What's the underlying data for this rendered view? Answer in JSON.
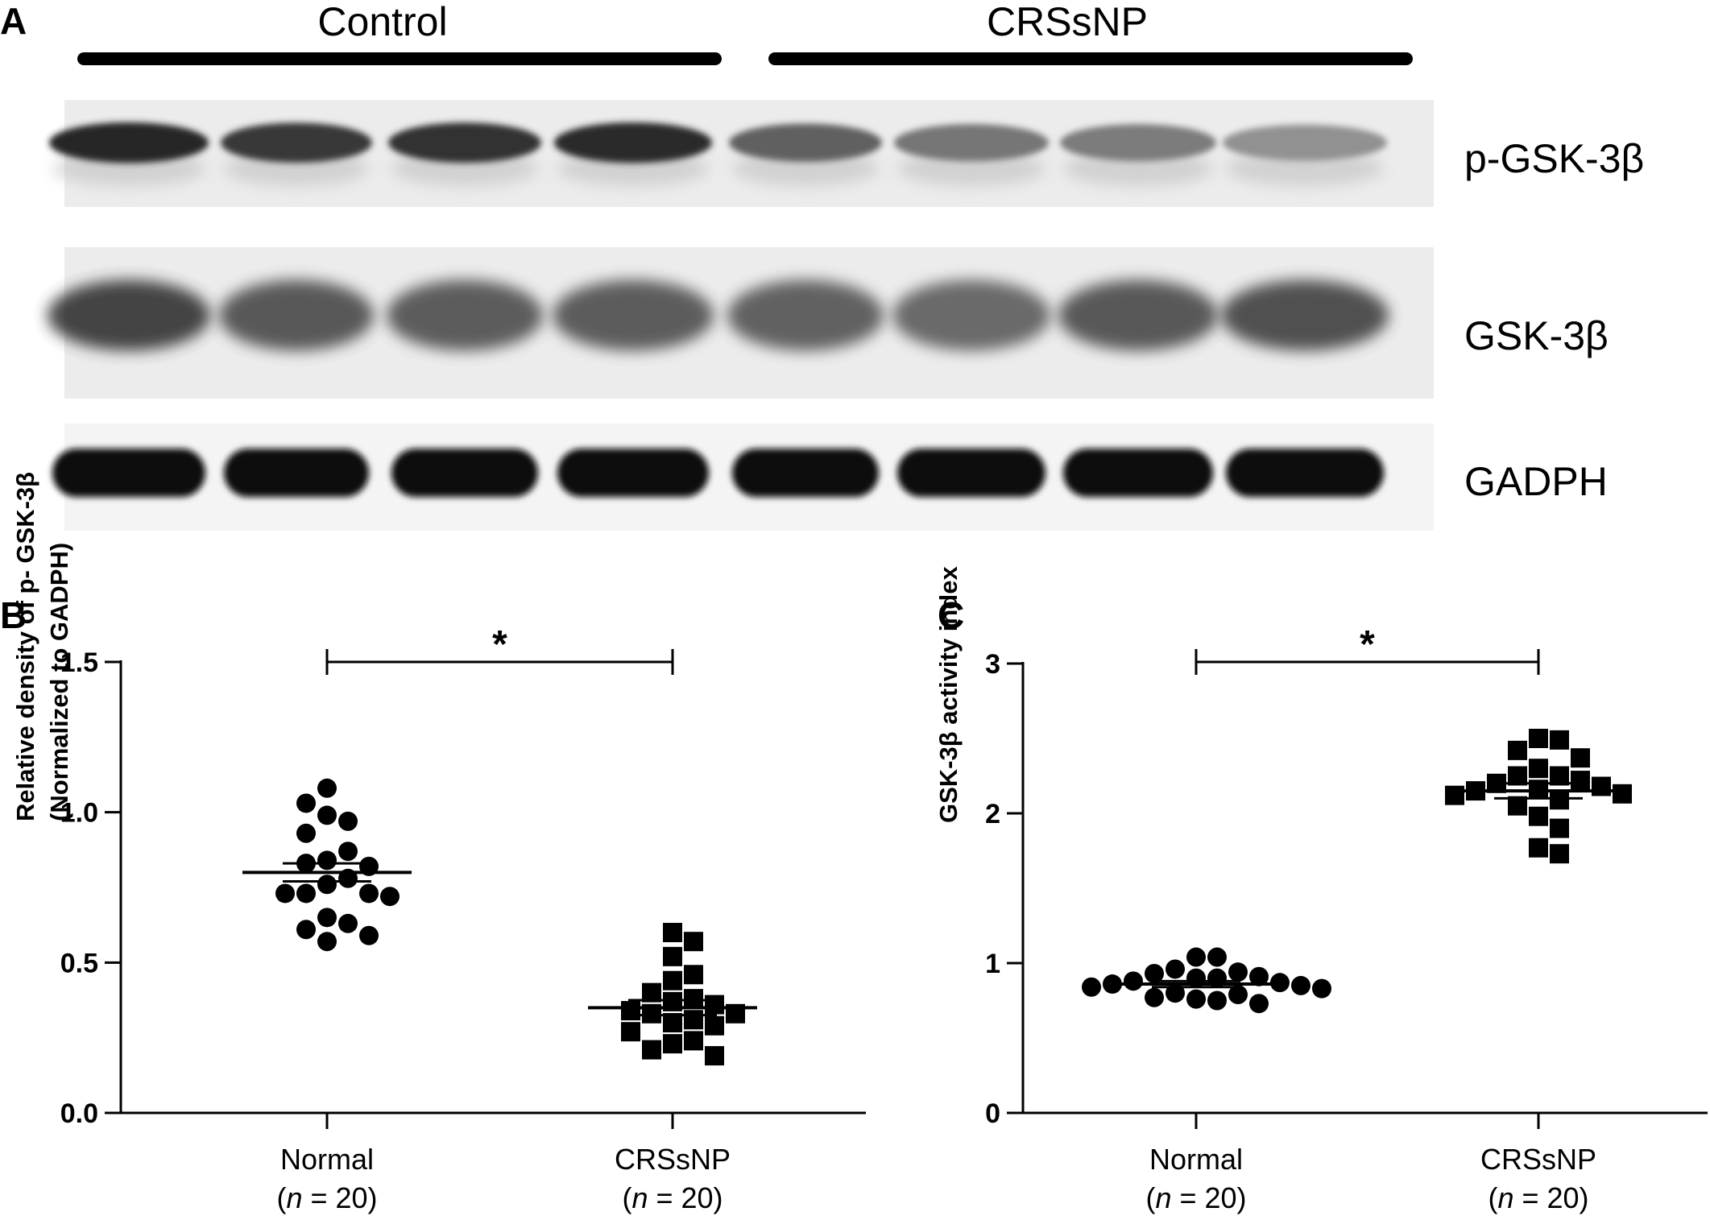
{
  "figure": {
    "panel_a": {
      "letter": "A",
      "groups": [
        "Control",
        "CRSsNP"
      ],
      "blot_rows": [
        {
          "label": "p-GSK-3β",
          "intensities": [
            0.88,
            0.8,
            0.82,
            0.86,
            0.62,
            0.52,
            0.5,
            0.4
          ],
          "kind": "p"
        },
        {
          "label": "GSK-3β",
          "intensities": [
            0.82,
            0.72,
            0.7,
            0.7,
            0.68,
            0.64,
            0.72,
            0.76
          ],
          "kind": "t"
        },
        {
          "label": "GADPH",
          "intensities": [
            1,
            1,
            1,
            1,
            1,
            1,
            1,
            1
          ],
          "kind": "g"
        }
      ]
    }
  },
  "chart_data": [
    {
      "type": "scatter",
      "panel": "B",
      "ylabel_lines": [
        "Relative density of p- GSK-3β",
        "(Normalized to GADPH)"
      ],
      "categories": [
        "Normal",
        "CRSsNP"
      ],
      "category_n": [
        "(n = 20)",
        "(n = 20)"
      ],
      "ylim": [
        0,
        1.5
      ],
      "yticks": [
        0.0,
        0.5,
        1.0,
        1.5
      ],
      "ytick_labels": [
        "0.0",
        "0.5",
        "1.0",
        "1.5"
      ],
      "significance": "*",
      "series": [
        {
          "category": "Normal",
          "marker": "circle",
          "mean": 0.8,
          "sem": 0.03,
          "values": [
            1.08,
            0.99,
            0.97,
            1.03,
            0.93,
            0.84,
            0.87,
            0.83,
            0.82,
            0.78,
            0.76,
            0.73,
            0.73,
            0.73,
            0.72,
            0.65,
            0.63,
            0.61,
            0.59,
            0.57
          ]
        },
        {
          "category": "CRSsNP",
          "marker": "square",
          "mean": 0.35,
          "sem": 0.025,
          "values": [
            0.6,
            0.57,
            0.52,
            0.46,
            0.44,
            0.4,
            0.38,
            0.37,
            0.36,
            0.34,
            0.33,
            0.33,
            0.31,
            0.3,
            0.29,
            0.27,
            0.24,
            0.23,
            0.21,
            0.19
          ]
        }
      ]
    },
    {
      "type": "scatter",
      "panel": "C",
      "ylabel": "GSK-3β activity index",
      "categories": [
        "Normal",
        "CRSsNP"
      ],
      "category_n": [
        "(n = 20)",
        "(n = 20)"
      ],
      "ylim": [
        0,
        3
      ],
      "yticks": [
        0,
        1,
        2,
        3
      ],
      "ytick_labels": [
        "0",
        "1",
        "2",
        "3"
      ],
      "significance": "*",
      "series": [
        {
          "category": "Normal",
          "marker": "circle",
          "mean": 0.86,
          "sem": 0.02,
          "values": [
            1.04,
            1.04,
            0.96,
            0.94,
            0.93,
            0.91,
            0.9,
            0.9,
            0.88,
            0.87,
            0.86,
            0.85,
            0.84,
            0.83,
            0.8,
            0.79,
            0.77,
            0.76,
            0.75,
            0.73
          ]
        },
        {
          "category": "CRSsNP",
          "marker": "square",
          "mean": 2.15,
          "sem": 0.05,
          "values": [
            2.5,
            2.49,
            2.42,
            2.37,
            2.3,
            2.25,
            2.25,
            2.22,
            2.2,
            2.18,
            2.16,
            2.15,
            2.13,
            2.12,
            2.09,
            2.05,
            1.98,
            1.9,
            1.77,
            1.73
          ]
        }
      ]
    }
  ]
}
